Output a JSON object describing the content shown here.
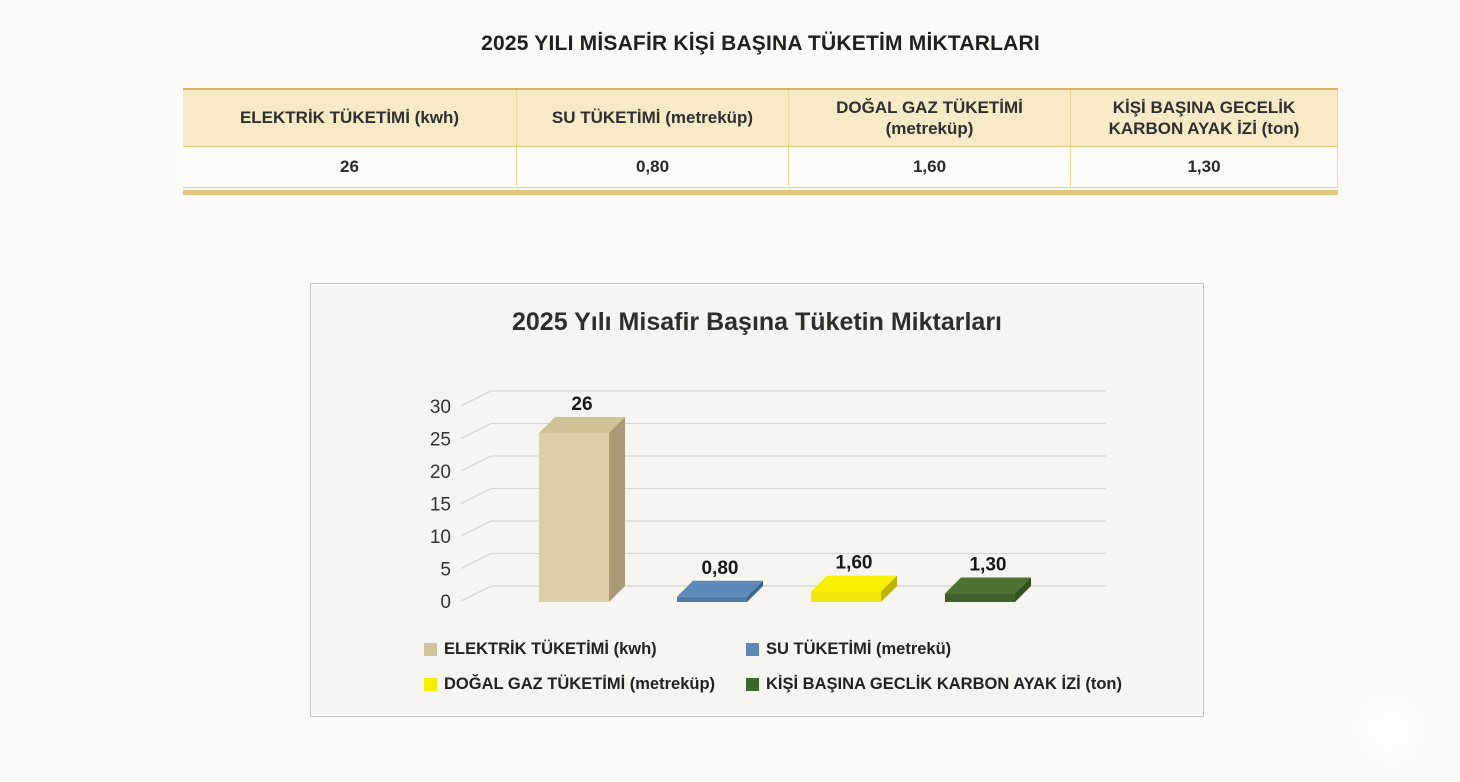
{
  "page": {
    "title": "2025 YILI MİSAFİR KİŞİ BAŞINA TÜKETİM MİKTARLARI"
  },
  "table": {
    "headers": [
      "ELEKTRİK TÜKETİMİ (kwh)",
      "SU TÜKETİMİ (metreküp)",
      "DOĞAL GAZ TÜKETİMİ (metreküp)",
      "KİŞİ BAŞINA GECELİK KARBON AYAK İZİ (ton)"
    ],
    "values": [
      "26",
      "0,80",
      "1,60",
      "1,30"
    ]
  },
  "chart_data": {
    "type": "bar",
    "style": "3d",
    "title": "2025 Yılı Misafir Başına Tüketin Miktarları",
    "categories": [
      "ELEKTRİK TÜKETİMİ (kwh)",
      "SU TÜKETİMİ (metrekü)",
      "DOĞAL GAZ TÜKETİMİ (metreküp)",
      "KİŞİ BAŞINA GECLİK KARBON AYAK İZİ (ton)"
    ],
    "values": [
      26,
      0.8,
      1.6,
      1.3
    ],
    "value_labels": [
      "26",
      "0,80",
      "1,60",
      "1,30"
    ],
    "xlabel": "",
    "ylabel": "",
    "ylim": [
      0,
      30
    ],
    "yticks": [
      0,
      5,
      10,
      15,
      20,
      25,
      30
    ],
    "grid": true,
    "legend_position": "bottom",
    "colors": [
      {
        "front": "#dccfa6",
        "top": "#cdc196",
        "side": "#a79b77",
        "legend": "#cfc3a0"
      },
      {
        "front": "#4d79a6",
        "top": "#5d8ab8",
        "side": "#3d658f",
        "legend": "#5b87b5"
      },
      {
        "front": "#f0e70c",
        "top": "#f7f000",
        "side": "#beb305",
        "legend": "#f5ee00"
      },
      {
        "front": "#40612a",
        "top": "#4d7233",
        "side": "#33511f",
        "legend": "#3d6629"
      }
    ]
  }
}
